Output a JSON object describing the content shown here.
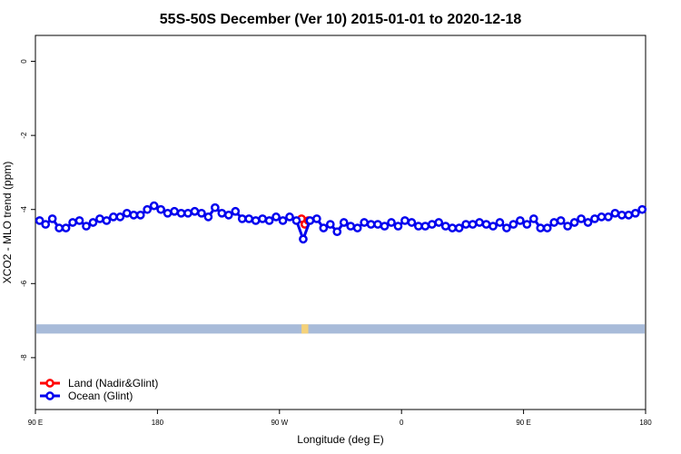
{
  "chart_data": {
    "type": "line",
    "title": "55S-50S December (Ver 10)   2015-01-01 to 2020-12-18",
    "xlabel": "Longitude (deg E)",
    "ylabel": "XCO2 - MLO trend (ppm)",
    "xlim": [
      90,
      450
    ],
    "ylim": [
      -9.4,
      0.7
    ],
    "x_ticks": [
      {
        "value": 90,
        "label": "90 E"
      },
      {
        "value": 162,
        "label": "180"
      },
      {
        "value": 234,
        "label": "90 W"
      },
      {
        "value": 306,
        "label": "0"
      },
      {
        "value": 378,
        "label": "90 E"
      },
      {
        "value": 450,
        "label": "180"
      }
    ],
    "y_ticks": [
      {
        "value": 0,
        "label": "0"
      },
      {
        "value": -2,
        "label": "-2"
      },
      {
        "value": -4,
        "label": "-4"
      },
      {
        "value": -6,
        "label": "-6"
      },
      {
        "value": -8,
        "label": "-8"
      }
    ],
    "grid": false,
    "legend_position": "bottom-left",
    "band": {
      "y_from": -7.35,
      "y_to": -7.1,
      "color": "#a8bbd9",
      "land_color": "#f5d27a",
      "land_x": [
        247,
        251
      ]
    },
    "series": [
      {
        "name": "Land (Nadir&Glint)",
        "color": "#ff0000",
        "x": [
          247,
          249,
          251
        ],
        "y": [
          -4.25,
          -4.4,
          -4.3
        ]
      },
      {
        "name": "Ocean (Glint)",
        "color": "#0000ee",
        "x": [
          92.5,
          96,
          100,
          104,
          108,
          112,
          116,
          120,
          124,
          128,
          132,
          136,
          140,
          144,
          148,
          152,
          156,
          160,
          164,
          168,
          172,
          176,
          180,
          184,
          188,
          192,
          196,
          200,
          204,
          208,
          212,
          216,
          220,
          224,
          228,
          232,
          236,
          240,
          244,
          248,
          252,
          256,
          260,
          264,
          268,
          272,
          276,
          280,
          284,
          288,
          292,
          296,
          300,
          304,
          308,
          312,
          316,
          320,
          324,
          328,
          332,
          336,
          340,
          344,
          348,
          352,
          356,
          360,
          364,
          368,
          372,
          376,
          380,
          384,
          388,
          392,
          396,
          400,
          404,
          408,
          412,
          416,
          420,
          424,
          428,
          432,
          436,
          440,
          444,
          448
        ],
        "y": [
          -4.3,
          -4.4,
          -4.25,
          -4.5,
          -4.5,
          -4.35,
          -4.3,
          -4.45,
          -4.35,
          -4.25,
          -4.3,
          -4.2,
          -4.2,
          -4.1,
          -4.15,
          -4.15,
          -4.0,
          -3.9,
          -4.0,
          -4.1,
          -4.05,
          -4.1,
          -4.1,
          -4.05,
          -4.1,
          -4.2,
          -3.95,
          -4.1,
          -4.15,
          -4.05,
          -4.25,
          -4.25,
          -4.3,
          -4.25,
          -4.3,
          -4.2,
          -4.3,
          -4.2,
          -4.3,
          -4.8,
          -4.3,
          -4.25,
          -4.5,
          -4.4,
          -4.6,
          -4.35,
          -4.45,
          -4.5,
          -4.35,
          -4.4,
          -4.4,
          -4.45,
          -4.35,
          -4.45,
          -4.3,
          -4.35,
          -4.45,
          -4.45,
          -4.4,
          -4.35,
          -4.45,
          -4.5,
          -4.5,
          -4.4,
          -4.4,
          -4.35,
          -4.4,
          -4.45,
          -4.35,
          -4.5,
          -4.4,
          -4.3,
          -4.4,
          -4.25,
          -4.5,
          -4.5,
          -4.35,
          -4.3,
          -4.45,
          -4.35,
          -4.25,
          -4.35,
          -4.25,
          -4.2,
          -4.2,
          -4.1,
          -4.15,
          -4.15,
          -4.1,
          -4.0
        ]
      }
    ]
  }
}
